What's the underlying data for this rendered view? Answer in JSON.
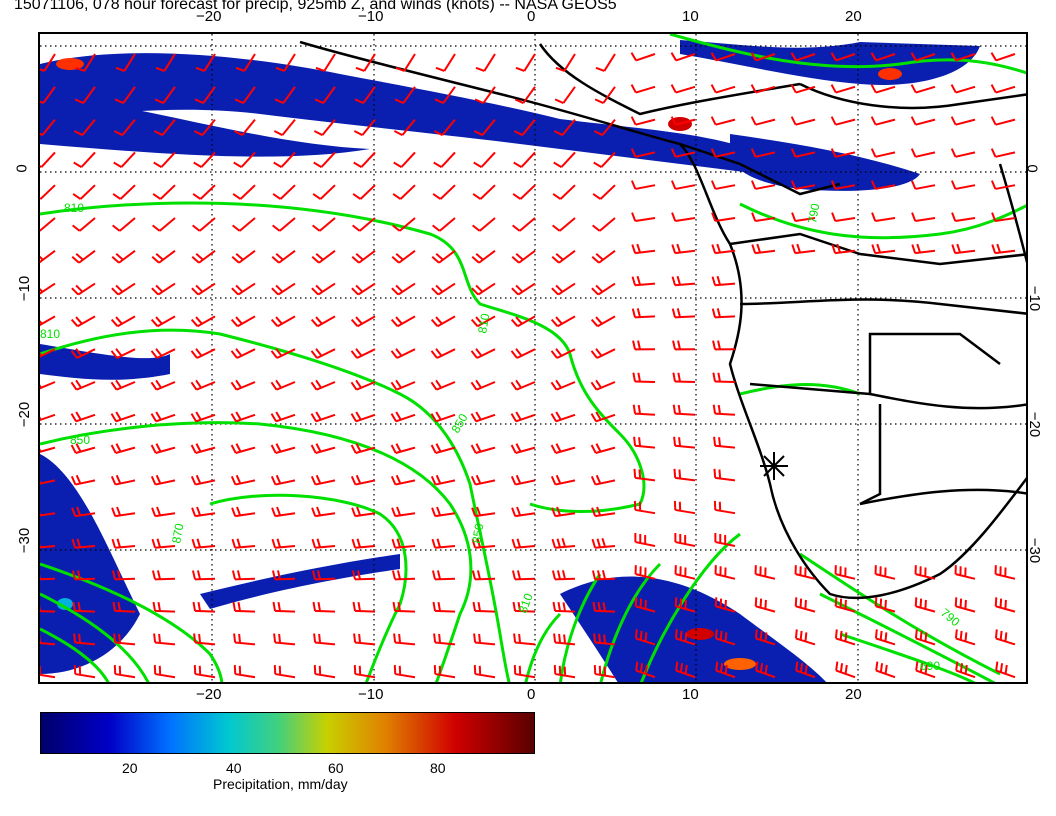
{
  "title": "15071106, 078 hour forecast for precip, 925mb Z, and winds (knots) -- NASA GEOS5",
  "map": {
    "lon_ticks": [
      "−20",
      "−10",
      "0",
      "10",
      "20"
    ],
    "lat_ticks": [
      "0",
      "−10",
      "−20",
      "−30"
    ],
    "contour_labels": [
      "810",
      "810",
      "810",
      "850",
      "850",
      "850",
      "870",
      "810",
      "790",
      "790",
      "690"
    ],
    "colors": {
      "wind_barb": "#ff0000",
      "contour": "#00e000",
      "coastline": "#000000",
      "precip_low": "#00006a",
      "precip_high": "#5a0000"
    }
  },
  "colorbar": {
    "ticks": [
      "20",
      "40",
      "60",
      "80"
    ],
    "label": "Precipitation, mm/day"
  }
}
